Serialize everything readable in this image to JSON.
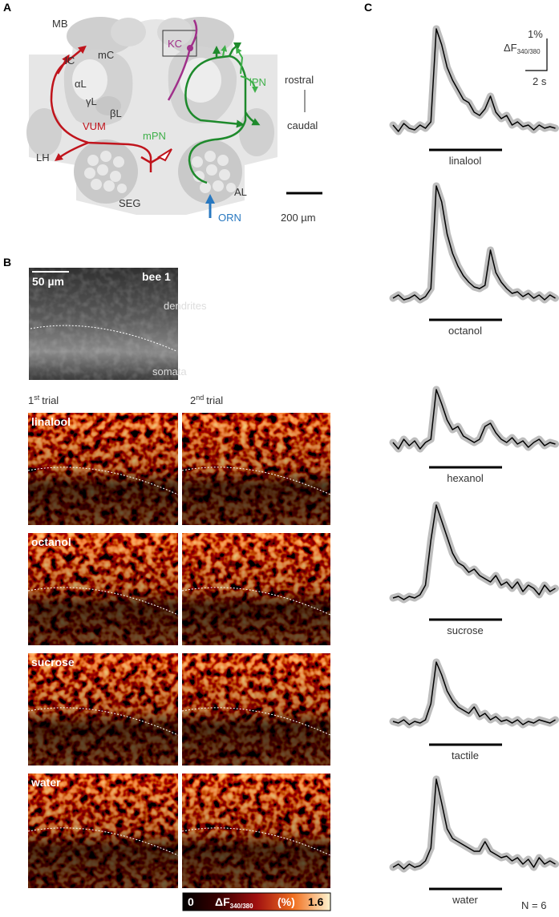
{
  "panel_a": {
    "label": "A",
    "labels": {
      "mb": "MB",
      "lc": "lC",
      "mc": "mC",
      "alpha": "αL",
      "gamma": "γL",
      "beta": "βL",
      "vum": "VUM",
      "lh": "LH",
      "mpn": "mPN",
      "kc": "KC",
      "lpn": "lPN",
      "rostral": "rostral",
      "caudal": "caudal",
      "seg": "SEG",
      "al": "AL",
      "orn": "ORN"
    },
    "scale": "200 µm"
  },
  "panel_b": {
    "label": "B",
    "overview": {
      "scale": "50 µm",
      "subject": "bee 1",
      "upper": "dendrites",
      "lower": "somata"
    },
    "trial_1": {
      "number": "1",
      "suffix": "st",
      "text": "trial"
    },
    "trial_2": {
      "number": "2",
      "suffix": "nd",
      "text": "trial"
    },
    "rows": [
      "linalool",
      "octanol",
      "sucrose",
      "water"
    ],
    "colorbar": {
      "min": 0,
      "label": "ΔF",
      "sub": "340/380",
      "unit": "(%)",
      "max": 1.6
    }
  },
  "panel_c": {
    "label": "C",
    "scale_y": "1%",
    "scale_y_label": "ΔF",
    "scale_y_sub": "340/380",
    "scale_x": "2 s",
    "x": [
      0,
      0.5,
      1,
      1.5,
      2,
      2.5,
      3,
      3.5,
      4,
      4.5,
      5,
      5.5,
      6,
      6.5,
      7,
      7.5,
      8,
      8.5,
      9,
      9.5,
      10,
      10.5,
      11,
      11.5,
      12,
      12.5,
      13,
      13.5,
      14,
      14.5,
      15
    ],
    "series": [
      {
        "name": "linalool",
        "values": [
          0.1,
          -0.1,
          0.15,
          0,
          -0.05,
          0.1,
          0,
          0.2,
          3.1,
          2.6,
          1.9,
          1.5,
          1.2,
          0.9,
          0.8,
          0.5,
          0.4,
          0.6,
          1.0,
          0.5,
          0.3,
          0.4,
          0.1,
          0.2,
          0.05,
          0.1,
          -0.05,
          0.1,
          0,
          0.05,
          0
        ]
      },
      {
        "name": "octanol",
        "values": [
          0,
          0.1,
          -0.05,
          0,
          0.1,
          -0.05,
          0.05,
          0.3,
          3.5,
          3.0,
          2.0,
          1.4,
          1.0,
          0.7,
          0.5,
          0.35,
          0.3,
          0.4,
          1.5,
          0.8,
          0.5,
          0.3,
          0.15,
          0.2,
          0.05,
          0.15,
          0.0,
          0.1,
          -0.05,
          0.1,
          0
        ]
      },
      {
        "name": "hexanol",
        "values": [
          0.1,
          -0.1,
          0.2,
          0,
          0.15,
          -0.1,
          0.1,
          0.2,
          1.75,
          1.3,
          0.8,
          0.5,
          0.6,
          0.3,
          0.2,
          0.1,
          0.2,
          0.6,
          0.7,
          0.4,
          0.2,
          0.1,
          0.25,
          0.05,
          0.15,
          -0.05,
          0.1,
          0.2,
          0,
          0.1,
          0.05
        ]
      },
      {
        "name": "sucrose",
        "values": [
          0,
          0.05,
          -0.05,
          0.05,
          0,
          0.1,
          0.4,
          1.8,
          2.9,
          2.4,
          1.9,
          1.4,
          1.1,
          1.0,
          0.8,
          0.9,
          0.7,
          0.6,
          0.5,
          0.7,
          0.4,
          0.5,
          0.3,
          0.5,
          0.2,
          0.4,
          0.3,
          0.1,
          0.4,
          0.2,
          0.3
        ]
      },
      {
        "name": "tactile",
        "values": [
          0.05,
          0,
          0.1,
          -0.05,
          0.05,
          0,
          0.1,
          0.6,
          1.9,
          1.5,
          1.0,
          0.7,
          0.5,
          0.4,
          0.3,
          0.5,
          0.2,
          0.3,
          0.1,
          0.2,
          0.05,
          0.1,
          0,
          0.1,
          -0.05,
          0.05,
          0,
          0.1,
          0.05,
          0,
          0.1
        ]
      },
      {
        "name": "water",
        "values": [
          0,
          0.1,
          -0.05,
          0.1,
          0,
          0.05,
          0.2,
          0.6,
          2.75,
          2.0,
          1.2,
          0.9,
          0.8,
          0.7,
          0.6,
          0.5,
          0.5,
          0.8,
          0.5,
          0.4,
          0.3,
          0.35,
          0.2,
          0.3,
          0.1,
          0.25,
          0.0,
          0.3,
          0.1,
          0.2,
          0.1
        ]
      }
    ],
    "n": "N = 6"
  }
}
